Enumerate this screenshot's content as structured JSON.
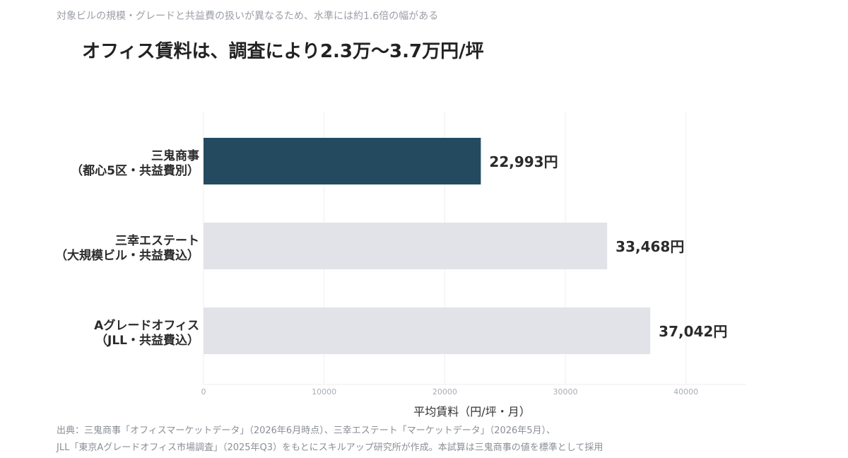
{
  "subtitle": "対象ビルの規模・グレードと共益費の扱いが異なるため、水準には約1.6倍の幅がある",
  "title": "オフィス賃料は、調査により2.3万〜3.7万円/坪",
  "source": {
    "line1": "出典：三鬼商事「オフィスマーケットデータ」（2026年6月時点）、三幸エステート「マーケットデータ」（2026年5月）、",
    "line2": "JLL「東京Aグレードオフィス市場調査」（2025年Q3）をもとにスキルアップ研究所が作成。本試算は三鬼商事の値を標準として採用"
  },
  "colors": {
    "highlight": "#244a60",
    "base": "#e1e3e8",
    "grid": "#f0eef2",
    "tick": "#a8acb4",
    "label": "#2b2b2b"
  },
  "chart_data": {
    "type": "bar",
    "orientation": "horizontal",
    "title": "オフィス賃料は、調査により2.3万〜3.7万円/坪",
    "subtitle": "対象ビルの規模・グレードと共益費の扱いが異なるため、水準には約1.6倍の幅がある",
    "xlabel": "平均賃料（円/坪・月）",
    "ylabel": "",
    "xlim": [
      0,
      45000
    ],
    "xticks": [
      0,
      10000,
      20000,
      30000,
      40000
    ],
    "grid": true,
    "categories": [
      [
        "三鬼商事",
        "（都心5区・共益費別）"
      ],
      [
        "三幸エステート",
        "（大規模ビル・共益費込）"
      ],
      [
        "Aグレードオフィス",
        "（JLL・共益費込）"
      ]
    ],
    "values": [
      22993,
      33468,
      37042
    ],
    "value_labels": [
      "22,993円",
      "33,468円",
      "37,042円"
    ],
    "highlight_index": 0
  }
}
